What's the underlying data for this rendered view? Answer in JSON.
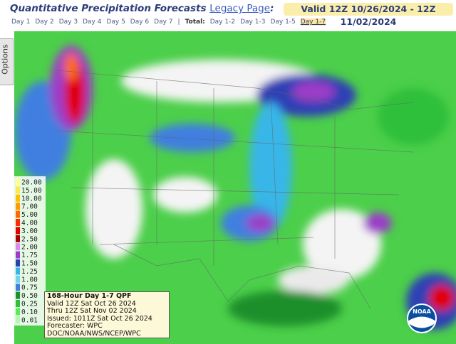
{
  "header": {
    "title": "Quantitative Precipitation Forecasts",
    "link": "Legacy Page",
    "colon": ":",
    "valid": "Valid 12Z 10/26/2024 - 12Z 11/02/2024"
  },
  "nav": {
    "days": [
      "Day 1",
      "Day 2",
      "Day 3",
      "Day 4",
      "Day 5",
      "Day 6",
      "Day 7"
    ],
    "separator": "|",
    "total_label": "Total:",
    "totals": [
      "Day 1-2",
      "Day 1-3",
      "Day 1-5",
      "Day 1-7"
    ],
    "selected": "Day 1-7"
  },
  "options": {
    "label": "Options"
  },
  "legend": [
    {
      "label": "20.00",
      "color": "#ffff99"
    },
    {
      "label": "15.00",
      "color": "#ffe84d"
    },
    {
      "label": "10.00",
      "color": "#ffc000"
    },
    {
      "label": "7.00",
      "color": "#ff9a00"
    },
    {
      "label": "5.00",
      "color": "#ff6a00"
    },
    {
      "label": "4.00",
      "color": "#ff2a00"
    },
    {
      "label": "3.00",
      "color": "#e00000"
    },
    {
      "label": "2.50",
      "color": "#a80000"
    },
    {
      "label": "2.00",
      "color": "#d88cf0"
    },
    {
      "label": "1.75",
      "color": "#9c3cc8"
    },
    {
      "label": "1.50",
      "color": "#2d3fb5"
    },
    {
      "label": "1.25",
      "color": "#38b6e8"
    },
    {
      "label": "1.00",
      "color": "#6fd3f2"
    },
    {
      "label": "0.75",
      "color": "#3f7fe0"
    },
    {
      "label": "0.50",
      "color": "#1f8f2a"
    },
    {
      "label": "0.25",
      "color": "#2fbf3a"
    },
    {
      "label": "0.10",
      "color": "#5fe85a"
    },
    {
      "label": "0.01",
      "color": "#b8f5b0"
    }
  ],
  "info": [
    "168-Hour Day 1-7 QPF",
    "Valid 12Z Sat Oct 26 2024",
    "Thru 12Z Sat Nov 02 2024",
    "Issued: 1011Z Sat Oct 26 2024",
    "Forecaster: WPC",
    "DOC/NOAA/NWS/NCEP/WPC"
  ],
  "logo": "NOAA"
}
